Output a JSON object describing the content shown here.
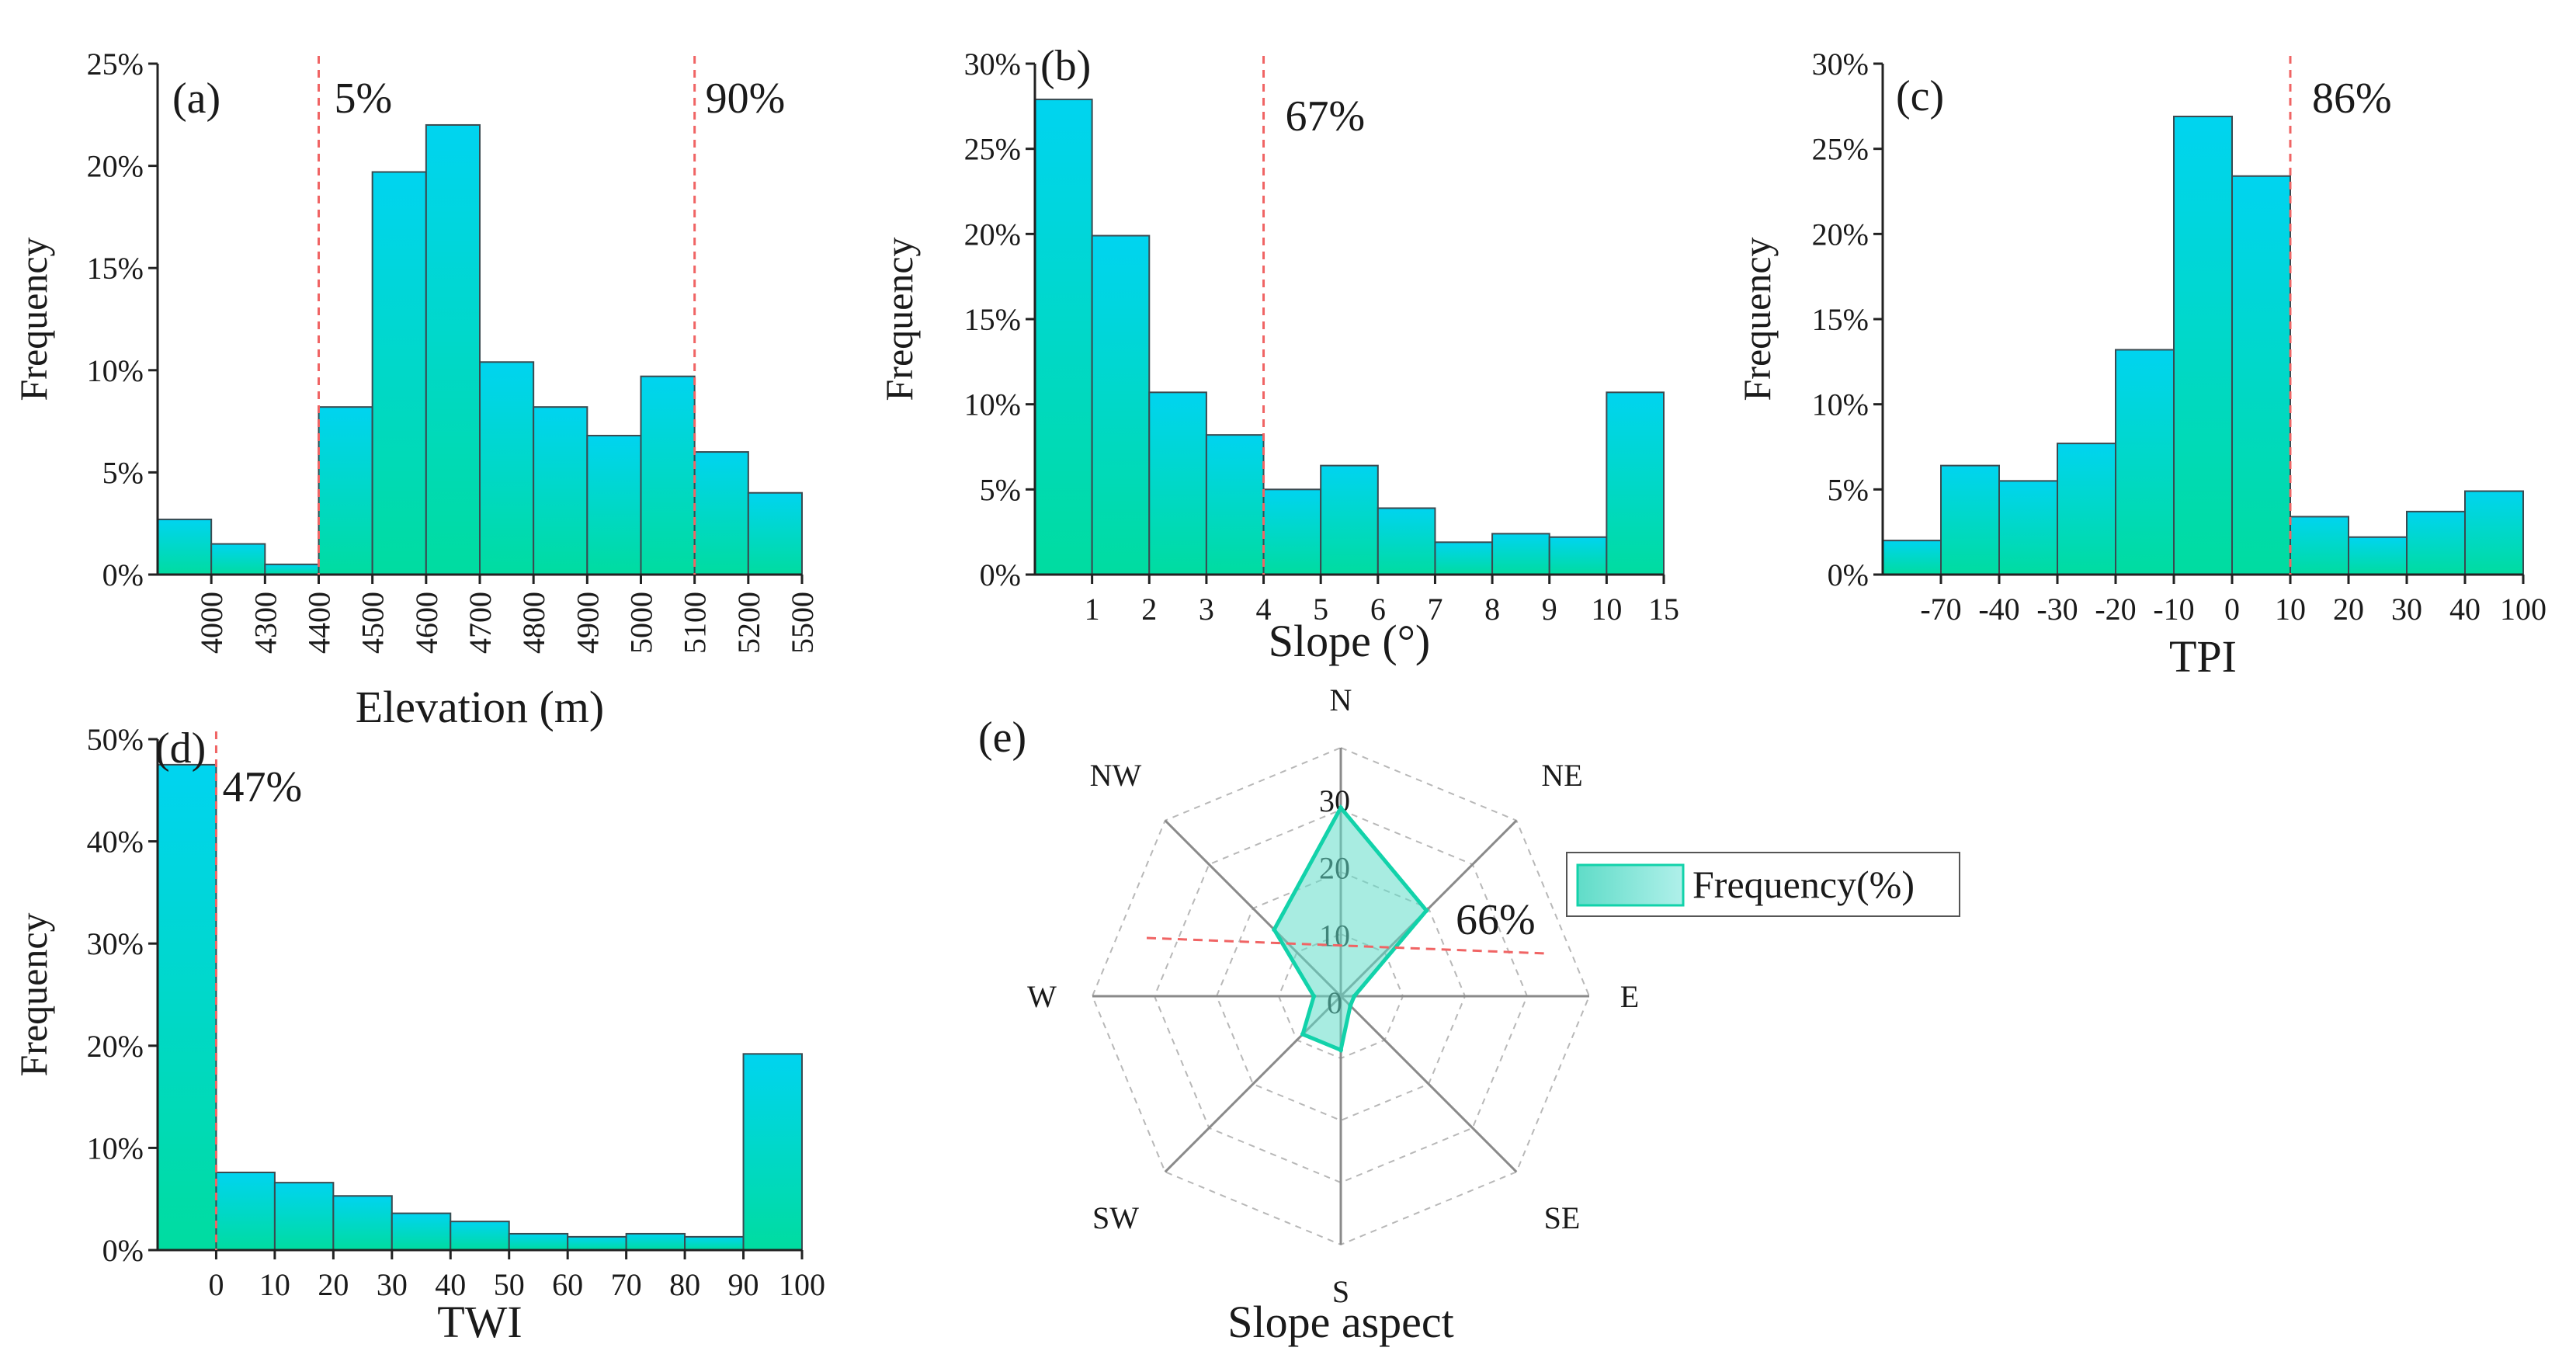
{
  "colors": {
    "bar_top": "#00d4f0",
    "bar_bottom": "#00dca0",
    "bar_stroke": "#3a4a50",
    "threshold_line": "#f06464",
    "radar_fill": "#60dcc8",
    "radar_stroke": "#12d2aa",
    "axis": "#222222",
    "grid": "#b8b8b8"
  },
  "chart_data": [
    {
      "id": "a",
      "type": "bar",
      "panel_label": "(a)",
      "xlabel": "Elevation (m)",
      "ylabel": "Frequency",
      "ylim": [
        0,
        25
      ],
      "yticks": [
        "0%",
        "5%",
        "10%",
        "15%",
        "20%",
        "25%"
      ],
      "xtick_labels": [
        "4000",
        "4300",
        "4400",
        "4500",
        "4600",
        "4700",
        "4800",
        "4900",
        "5000",
        "5100",
        "5200",
        "5500"
      ],
      "values": [
        2.7,
        1.5,
        0.5,
        8.2,
        19.7,
        22.0,
        10.4,
        8.2,
        6.8,
        9.7,
        6.0,
        4.0
      ],
      "thresholds": [
        {
          "after_bar": 3,
          "label": "5%"
        },
        {
          "after_bar": 10,
          "label": "90%"
        }
      ]
    },
    {
      "id": "b",
      "type": "bar",
      "panel_label": "(b)",
      "xlabel": "Slope (°)",
      "ylabel": "Frequency",
      "ylim": [
        0,
        30
      ],
      "yticks": [
        "0%",
        "5%",
        "10%",
        "15%",
        "20%",
        "25%",
        "30%"
      ],
      "xtick_labels": [
        "1",
        "2",
        "3",
        "4",
        "5",
        "6",
        "7",
        "8",
        "9",
        "10",
        "15"
      ],
      "values": [
        27.9,
        19.9,
        10.7,
        8.2,
        5.0,
        6.4,
        3.9,
        1.9,
        2.4,
        2.2,
        10.7
      ],
      "thresholds": [
        {
          "after_bar": 4,
          "label": "67%"
        }
      ]
    },
    {
      "id": "c",
      "type": "bar",
      "panel_label": "(c)",
      "xlabel": "TPI",
      "ylabel": "Frequency",
      "ylim": [
        0,
        30
      ],
      "yticks": [
        "0%",
        "5%",
        "10%",
        "15%",
        "20%",
        "25%",
        "30%"
      ],
      "xtick_labels": [
        "-70",
        "-40",
        "-30",
        "-20",
        "-10",
        "0",
        "10",
        "20",
        "30",
        "40",
        "100"
      ],
      "values": [
        2.0,
        6.4,
        5.5,
        7.7,
        13.2,
        26.9,
        23.4,
        3.4,
        2.2,
        3.7,
        4.9
      ],
      "thresholds": [
        {
          "after_bar": 7,
          "label": "86%"
        }
      ]
    },
    {
      "id": "d",
      "type": "bar",
      "panel_label": "(d)",
      "xlabel": "TWI",
      "ylabel": "Frequency",
      "ylim": [
        0,
        50
      ],
      "yticks": [
        "0%",
        "10%",
        "20%",
        "30%",
        "40%",
        "50%"
      ],
      "xtick_labels": [
        "0",
        "10",
        "20",
        "30",
        "40",
        "50",
        "60",
        "70",
        "80",
        "90",
        "100"
      ],
      "values": [
        47.5,
        7.6,
        6.6,
        5.3,
        3.6,
        2.8,
        1.6,
        1.3,
        1.6,
        1.3,
        19.2
      ],
      "thresholds": [
        {
          "after_bar": 1,
          "label": "47%"
        }
      ]
    },
    {
      "id": "e",
      "type": "radar",
      "panel_label": "(e)",
      "xlabel": "Slope aspect",
      "directions": [
        "N",
        "NE",
        "E",
        "SE",
        "S",
        "SW",
        "W",
        "NW"
      ],
      "rings": [
        "0",
        "10",
        "20",
        "30"
      ],
      "rmax": 30,
      "values": [
        28,
        18,
        2,
        2,
        8,
        8,
        4,
        14
      ],
      "legend": "Frequency(%)",
      "annotation": "66%"
    }
  ]
}
